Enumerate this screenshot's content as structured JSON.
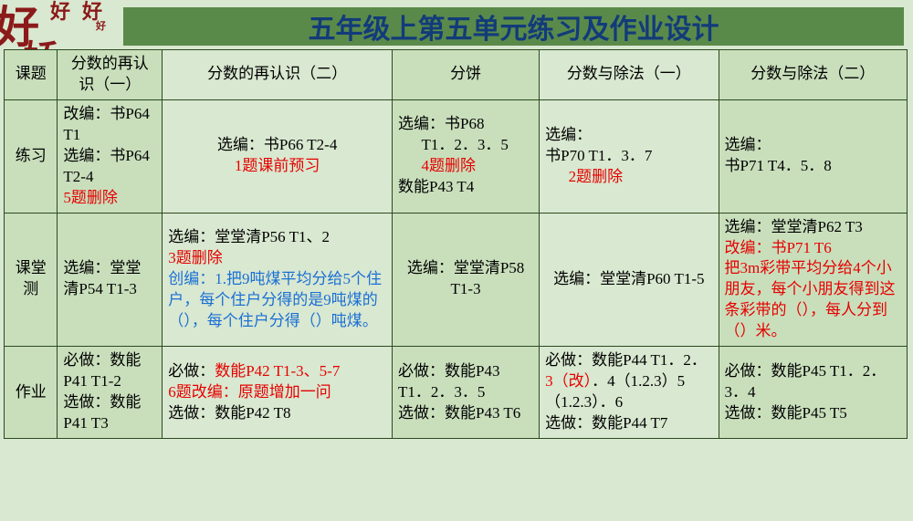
{
  "decoration": {
    "big1": "好",
    "small1": "好",
    "small2": "好",
    "tiny": "好",
    "big2": "娇"
  },
  "title": "五年级上第五单元练习及作业设计",
  "colors": {
    "background": "#d9e8d0",
    "alt_background": "#c9dfbc",
    "title_bg": "#5a8a4a",
    "title_text": "#123b7a",
    "border": "#2b4a1f",
    "red": "#e60000",
    "blue": "#1a6fd6",
    "decoration": "#8b1a1a"
  },
  "headers": {
    "rowhead": "课题",
    "c1": "分数的再认识（一）",
    "c2": "分数的再认识（二）",
    "c3": "分饼",
    "c4": "分数与除法（一）",
    "c5": "分数与除法（二）"
  },
  "rowlabels": {
    "r1": "练习",
    "r2": "课堂测",
    "r3": "作业"
  },
  "r1": {
    "c1_a": "改编：书P64 T1",
    "c1_b": "选编：书P64 T2-4",
    "c1_c": "5题删除",
    "c2_a": "选编：书P66 T2-4",
    "c2_b": "1题课前预习",
    "c3_a": "选编：书P68",
    "c3_b": "T1．2．3．5",
    "c3_c": "4题删除",
    "c3_d": "数能P43 T4",
    "c4_a": "选编：",
    "c4_b": "书P70 T1．3．7",
    "c4_c": "2题删除",
    "c5_a": "选编：",
    "c5_b": "书P71 T4．5．8"
  },
  "r2": {
    "c1": "选编：堂堂清P54 T1-3",
    "c2_a": "选编：堂堂清P56 T1、2",
    "c2_b": "3题删除",
    "c2_c": "创编：1.把9吨煤平均分给5个住户，每个住户分得的是9吨煤的（），每个住户分得（）吨煤。",
    "c3": "选编：堂堂清P58 T1-3",
    "c4": "选编：堂堂清P60 T1-5",
    "c5_a": "选编：堂堂清P62 T3",
    "c5_b": "改编：书P71 T6",
    "c5_c": "把3m彩带平均分给4个小朋友，每个小朋友得到这条彩带的（），每人分到（）米。"
  },
  "r3": {
    "c1_a": "必做：数能P41 T1-2",
    "c1_b": "选做：数能P41 T3",
    "c2_a_pre": "必做：",
    "c2_a_red": "数能P42 T1-3、5-7",
    "c2_b": "6题改编：原题增加一问",
    "c2_c": "选做：数能P42 T8",
    "c3_a": "必做：数能P43 T1．2．3．5",
    "c3_b": "选做：数能P43 T6",
    "c4_a_pre": "必做：数能P44 T1．2．",
    "c4_a_red": "3（改）",
    "c4_a_post": "．4（1.2.3）5（1.2.3）．6",
    "c4_b": "选做：数能P44 T7",
    "c5_a": "必做：数能P45 T1．2．3．4",
    "c5_b": "选做：数能P45 T5"
  }
}
